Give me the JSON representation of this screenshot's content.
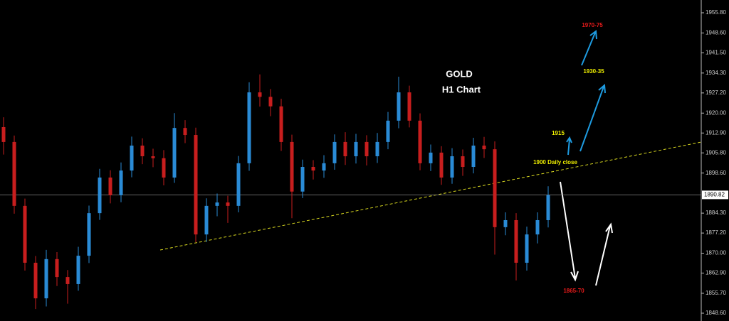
{
  "chart_data": {
    "type": "candlestick",
    "title": "GOLD",
    "subtitle": "H1 Chart",
    "up_color": "#2a8bd6",
    "down_color": "#c81e1e",
    "open": [
      1915.0,
      1909.7,
      1886.9,
      1866.6,
      1853.9,
      1867.9,
      1861.5,
      1859.0,
      1869.1,
      1884.3,
      1897.0,
      1890.7,
      1899.5,
      1908.4,
      1904.6,
      1903.9,
      1897.0,
      1914.7,
      1912.2,
      1876.7,
      1886.9,
      1888.1,
      1886.9,
      1902.1,
      1927.4,
      1925.8,
      1922.4,
      1909.7,
      1892.0,
      1900.8,
      1899.5,
      1902.1,
      1909.7,
      1904.6,
      1909.7,
      1904.6,
      1909.7,
      1917.3,
      1927.4,
      1917.3,
      1902.1,
      1905.9,
      1897.0,
      1904.6,
      1900.8,
      1908.4,
      1907.1,
      1879.3,
      1881.8,
      1866.6,
      1876.7,
      1881.8
    ],
    "high": [
      1918.5,
      1912.0,
      1889.5,
      1869.0,
      1871.2,
      1870.4,
      1864.0,
      1872.3,
      1887.0,
      1900.1,
      1899.6,
      1902.4,
      1911.6,
      1911.0,
      1907.3,
      1906.8,
      1920.0,
      1917.5,
      1914.8,
      1889.6,
      1891.3,
      1890.5,
      1904.7,
      1931.0,
      1933.8,
      1928.6,
      1925.1,
      1912.3,
      1903.4,
      1903.2,
      1905.0,
      1912.4,
      1913.2,
      1912.6,
      1912.1,
      1912.9,
      1920.4,
      1933.0,
      1929.8,
      1919.9,
      1908.8,
      1908.2,
      1907.5,
      1907.0,
      1911.2,
      1911.5,
      1909.9,
      1884.6,
      1884.3,
      1879.5,
      1884.6,
      1893.9
    ],
    "low": [
      1905.2,
      1884.1,
      1863.8,
      1850.1,
      1851.0,
      1858.3,
      1852.0,
      1856.6,
      1866.5,
      1881.9,
      1887.8,
      1888.2,
      1897.1,
      1901.8,
      1900.7,
      1894.2,
      1895.1,
      1909.3,
      1873.9,
      1874.0,
      1883.2,
      1880.8,
      1884.6,
      1899.4,
      1922.3,
      1918.9,
      1906.5,
      1882.5,
      1889.7,
      1896.3,
      1896.9,
      1899.8,
      1901.5,
      1902.0,
      1901.3,
      1902.2,
      1907.1,
      1914.6,
      1914.9,
      1899.6,
      1899.3,
      1894.4,
      1894.8,
      1897.6,
      1898.5,
      1904.0,
      1869.5,
      1876.4,
      1860.3,
      1863.8,
      1873.5,
      1879.2
    ],
    "close": [
      1909.7,
      1886.9,
      1866.6,
      1853.9,
      1867.9,
      1861.5,
      1859.0,
      1869.1,
      1884.3,
      1897.0,
      1890.7,
      1899.5,
      1908.4,
      1904.6,
      1903.9,
      1897.0,
      1914.7,
      1912.2,
      1876.7,
      1886.9,
      1888.1,
      1886.9,
      1902.1,
      1927.4,
      1925.8,
      1922.4,
      1909.7,
      1892.0,
      1900.8,
      1899.5,
      1902.1,
      1909.7,
      1904.6,
      1909.7,
      1904.6,
      1909.7,
      1917.3,
      1927.4,
      1917.3,
      1902.1,
      1905.9,
      1897.0,
      1904.6,
      1900.8,
      1908.4,
      1907.1,
      1879.3,
      1881.8,
      1866.6,
      1876.7,
      1881.8,
      1890.7
    ],
    "current_price": 1890.82,
    "ylim": [
      1845.81,
      1960.36
    ],
    "yticks": [
      {
        "value": 1955.8,
        "label": "1955.80"
      },
      {
        "value": 1948.6,
        "label": "1948.60"
      },
      {
        "value": 1941.5,
        "label": "1941.50"
      },
      {
        "value": 1934.3,
        "label": "1934.30"
      },
      {
        "value": 1927.2,
        "label": "1927.20"
      },
      {
        "value": 1920.0,
        "label": "1920.00"
      },
      {
        "value": 1912.9,
        "label": "1912.90"
      },
      {
        "value": 1905.8,
        "label": "1905.80"
      },
      {
        "value": 1898.6,
        "label": "1898.60"
      },
      {
        "value": 1884.3,
        "label": "1884.30"
      },
      {
        "value": 1877.2,
        "label": "1877.20"
      },
      {
        "value": 1870.0,
        "label": "1870.00"
      },
      {
        "value": 1862.9,
        "label": "1862.90"
      },
      {
        "value": 1855.7,
        "label": "1855.70"
      },
      {
        "value": 1848.6,
        "label": "1848.60"
      }
    ],
    "annotations": [
      "1970-75",
      "1930-35",
      "1915",
      "1900 Daily close",
      "1865-70"
    ]
  }
}
